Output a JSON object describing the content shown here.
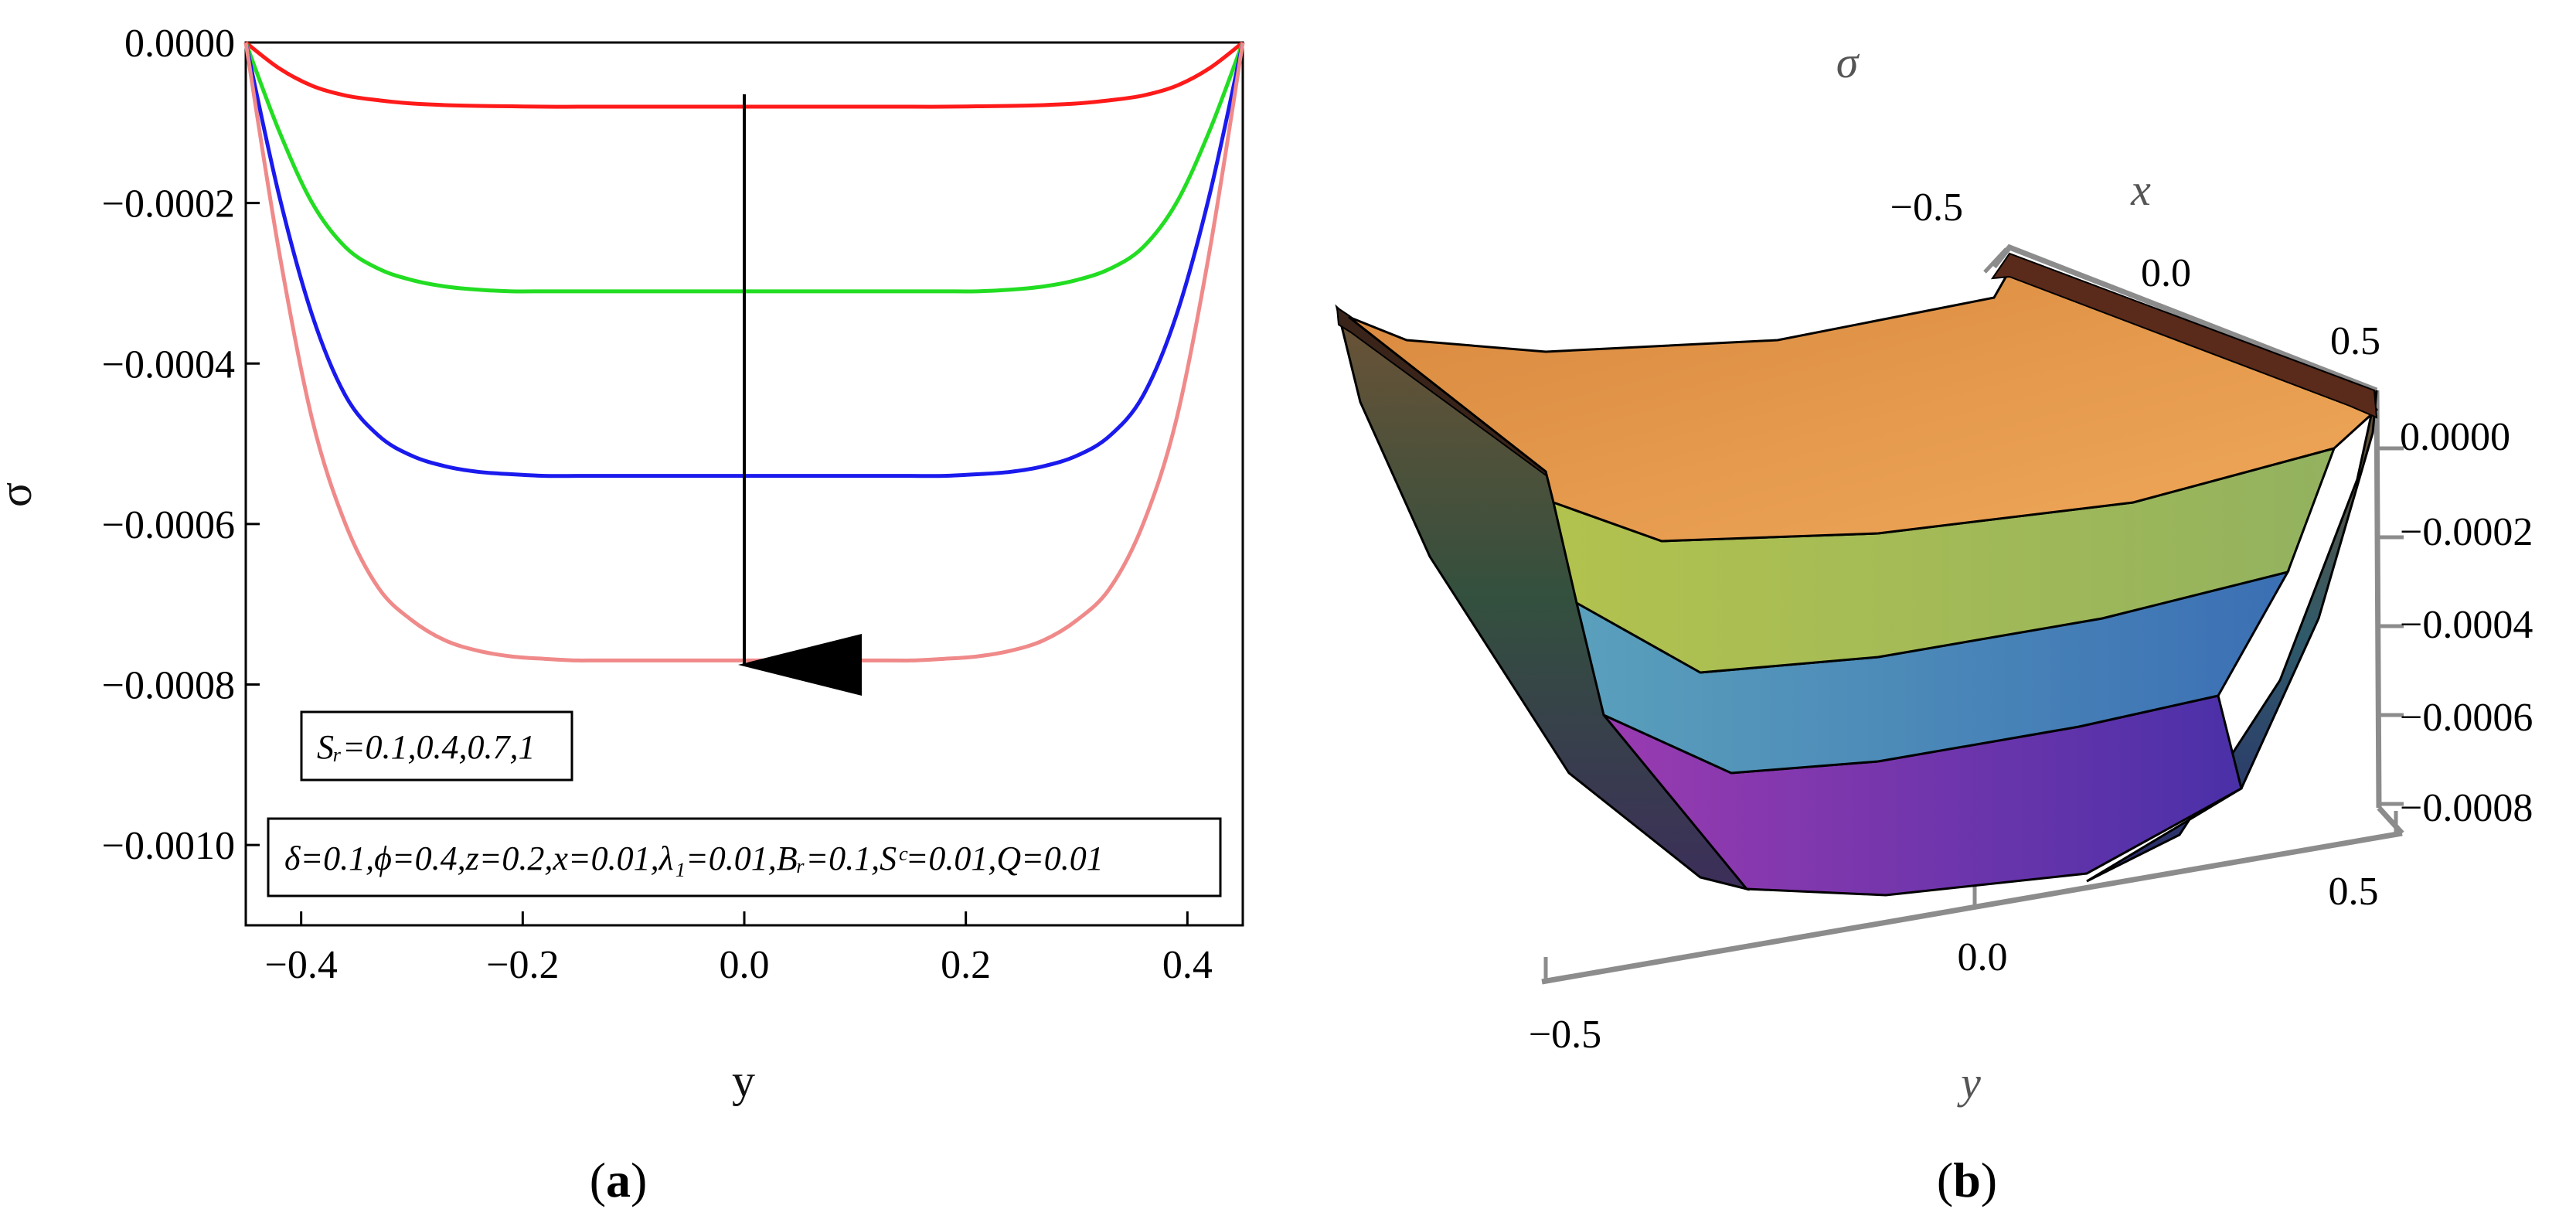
{
  "chart_data": [
    {
      "panel": "(a)",
      "type": "line",
      "xlabel": "y",
      "ylabel": "σ",
      "xlim": [
        -0.45,
        0.45
      ],
      "ylim": [
        -0.0011,
        0.0
      ],
      "xticks": [
        "−0.4",
        "−0.2",
        "0.0",
        "0.2",
        "0.4"
      ],
      "xtick_values": [
        -0.4,
        -0.2,
        0.0,
        0.2,
        0.4
      ],
      "yticks": [
        "0.0000",
        "−0.0002",
        "−0.0004",
        "−0.0006",
        "−0.0008",
        "−0.0010"
      ],
      "ytick_values": [
        0.0,
        -0.0002,
        -0.0004,
        -0.0006,
        -0.0008,
        -0.001
      ],
      "series": [
        {
          "color": "#ff1a1a",
          "x": [
            -0.45,
            -0.42,
            -0.39,
            -0.36,
            -0.33,
            -0.3,
            -0.27,
            -0.24,
            -0.21,
            -0.18,
            -0.15,
            -0.12,
            0.12,
            0.15,
            0.18,
            0.21,
            0.24,
            0.27,
            0.3,
            0.33,
            0.36,
            0.39,
            0.42,
            0.45
          ],
          "y": [
            0.0,
            -3.2e-05,
            -5.4e-05,
            -6.6e-05,
            -7.2e-05,
            -7.6e-05,
            -7.8e-05,
            -7.9e-05,
            -7.95e-05,
            -8e-05,
            -8e-05,
            -8e-05,
            -8e-05,
            -8e-05,
            -8e-05,
            -7.95e-05,
            -7.9e-05,
            -7.8e-05,
            -7.6e-05,
            -7.2e-05,
            -6.6e-05,
            -5.4e-05,
            -3.2e-05,
            0.0
          ]
        },
        {
          "color": "#22dd22",
          "x": [
            -0.45,
            -0.42,
            -0.39,
            -0.36,
            -0.33,
            -0.3,
            -0.27,
            -0.24,
            -0.21,
            -0.18,
            -0.15,
            -0.12,
            0.12,
            0.15,
            0.18,
            0.21,
            0.24,
            0.27,
            0.3,
            0.33,
            0.36,
            0.39,
            0.42,
            0.45
          ],
          "y": [
            0.0,
            -0.00011,
            -0.0002,
            -0.000255,
            -0.000282,
            -0.000296,
            -0.000304,
            -0.000308,
            -0.00031,
            -0.00031,
            -0.00031,
            -0.00031,
            -0.00031,
            -0.00031,
            -0.00031,
            -0.00031,
            -0.000308,
            -0.000304,
            -0.000296,
            -0.000282,
            -0.000255,
            -0.0002,
            -0.00011,
            0.0
          ]
        },
        {
          "color": "#1a1aee",
          "x": [
            -0.45,
            -0.42,
            -0.39,
            -0.36,
            -0.33,
            -0.3,
            -0.27,
            -0.24,
            -0.21,
            -0.18,
            -0.15,
            -0.12,
            0.12,
            0.15,
            0.18,
            0.21,
            0.24,
            0.27,
            0.3,
            0.33,
            0.36,
            0.39,
            0.42,
            0.45
          ],
          "y": [
            0.0,
            -0.00019,
            -0.00034,
            -0.00044,
            -0.00049,
            -0.000515,
            -0.000528,
            -0.000535,
            -0.000538,
            -0.00054,
            -0.00054,
            -0.00054,
            -0.00054,
            -0.00054,
            -0.00054,
            -0.000538,
            -0.000535,
            -0.000528,
            -0.000515,
            -0.00049,
            -0.00044,
            -0.00034,
            -0.00019,
            0.0
          ]
        },
        {
          "color": "#f08a8a",
          "x": [
            -0.45,
            -0.42,
            -0.39,
            -0.36,
            -0.33,
            -0.3,
            -0.27,
            -0.24,
            -0.21,
            -0.18,
            -0.15,
            -0.12,
            0.12,
            0.15,
            0.18,
            0.21,
            0.24,
            0.27,
            0.3,
            0.33,
            0.36,
            0.39,
            0.42,
            0.45
          ],
          "y": [
            0.0,
            -0.00026,
            -0.00047,
            -0.0006,
            -0.00068,
            -0.00072,
            -0.000745,
            -0.000758,
            -0.000765,
            -0.000768,
            -0.00077,
            -0.00077,
            -0.00077,
            -0.00077,
            -0.000768,
            -0.000765,
            -0.000758,
            -0.000745,
            -0.00072,
            -0.00068,
            -0.0006,
            -0.00047,
            -0.00026,
            0.0
          ]
        }
      ],
      "annotations": {
        "legend_sr": "Sᵣ=0.1,0.4,0.7,1",
        "params": "δ=0.1,ϕ=0.4,z=0.2,x=0.01,λ₁=0.01,Bᵣ=0.1,Sᶜ=0.01,Q=0.01",
        "arrow": "increasing Sᵣ downward"
      }
    },
    {
      "panel": "(b)",
      "type": "surface",
      "title": "σ",
      "xlabel": "x",
      "ylabel": "y",
      "xticks": [
        "−0.5",
        "0.0",
        "0.5"
      ],
      "yticks": [
        "−0.5",
        "0.0",
        "0.5"
      ],
      "zticks": [
        "0.0000",
        "−0.0002",
        "−0.0004",
        "−0.0006",
        "−0.0008"
      ],
      "z_range": [
        -0.0008,
        0.0
      ]
    }
  ],
  "captions": {
    "a": "a",
    "b": "b"
  },
  "colors": {
    "orange": "#e08a3c",
    "lime": "#a9c05a",
    "teal": "#4f8fb8",
    "violet": "#8a2fa8",
    "arrow": "#000000",
    "frame3d": "#8c8c8c"
  }
}
